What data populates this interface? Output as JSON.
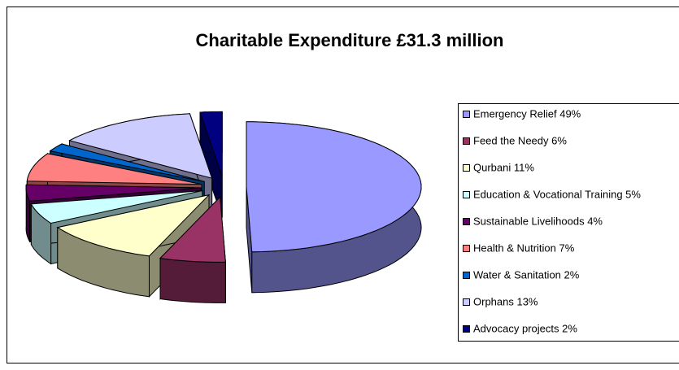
{
  "chart_data": {
    "type": "pie3d",
    "title": "Charitable Expenditure £31.3 million",
    "categories": [
      "Emergency Relief 49%",
      "Feed the Needy 6%",
      "Qurbani 11%",
      "Education & Vocational Training 5%",
      "Sustainable Livelihoods 4%",
      "Health & Nutrition 7%",
      "Water & Sanitation 2%",
      "Orphans 13%",
      "Advocacy projects 2%"
    ],
    "values": [
      49,
      6,
      11,
      5,
      4,
      7,
      2,
      13,
      2
    ],
    "colors": [
      "#9999ff",
      "#993366",
      "#ffffcc",
      "#ccffff",
      "#660066",
      "#ff8080",
      "#0066cc",
      "#ccccff",
      "#000080"
    ],
    "legend": "right"
  }
}
